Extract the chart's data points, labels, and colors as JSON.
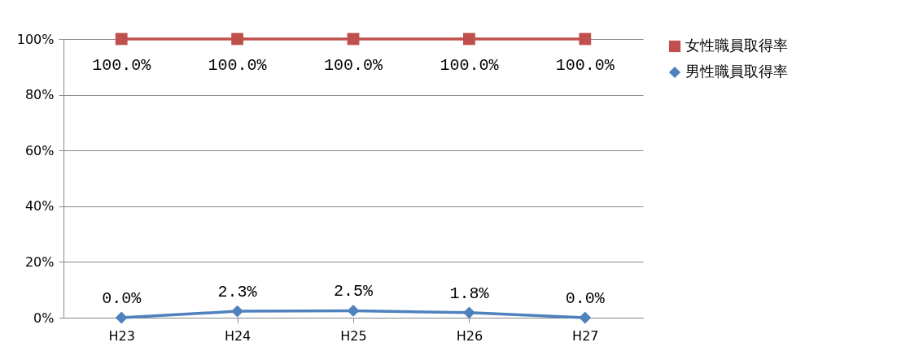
{
  "chart_data": {
    "type": "line",
    "categories": [
      "H23",
      "H24",
      "H25",
      "H26",
      "H27"
    ],
    "series": [
      {
        "name": "女性職員取得率",
        "color": "#c0504d",
        "marker": "square",
        "values": [
          100,
          100,
          100,
          100,
          100
        ],
        "value_labels": [
          "100.0%",
          "100.0%",
          "100.0%",
          "100.0%",
          "100.0%"
        ]
      },
      {
        "name": "男性職員取得率",
        "color": "#4f81bd",
        "marker": "diamond",
        "values": [
          0,
          2.3,
          2.5,
          1.8,
          0
        ],
        "value_labels": [
          "0.0%",
          "2.3%",
          "2.5%",
          "1.8%",
          "0.0%"
        ]
      }
    ],
    "ylim": [
      0,
      100
    ],
    "yticks": [
      {
        "value": 0,
        "label": "0%"
      },
      {
        "value": 20,
        "label": "20%"
      },
      {
        "value": 40,
        "label": "40%"
      },
      {
        "value": 60,
        "label": "60%"
      },
      {
        "value": 80,
        "label": "80%"
      },
      {
        "value": 100,
        "label": "100%"
      }
    ],
    "grid": "y",
    "legend": "right",
    "line_style": "solid"
  }
}
